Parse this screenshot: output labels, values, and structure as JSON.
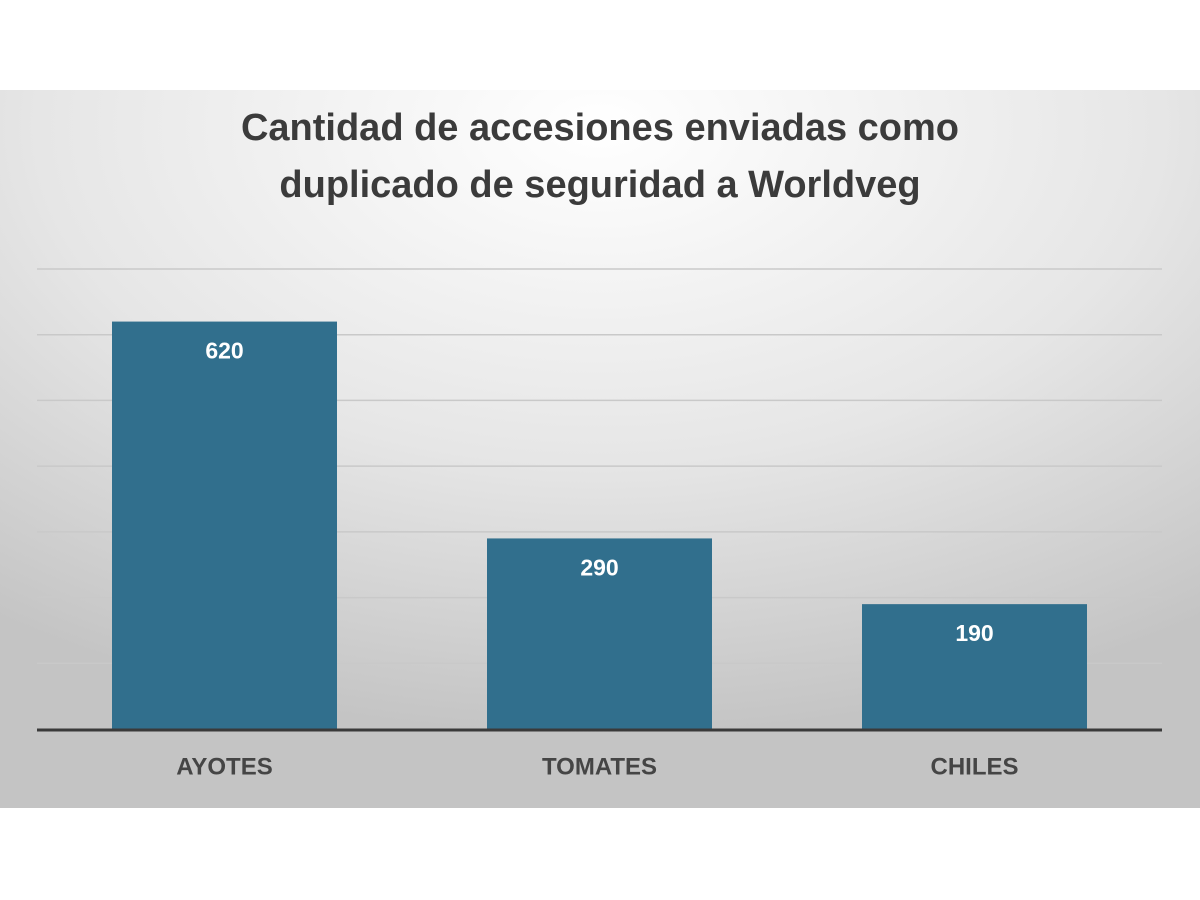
{
  "chart_data": {
    "type": "bar",
    "title": "Cantidad de accesiones enviadas como duplicado de seguridad a Worldveg",
    "categories": [
      "AYOTES",
      "TOMATES",
      "CHILES"
    ],
    "values": [
      620,
      290,
      190
    ],
    "color": "#316f8d",
    "ylim": [
      0,
      700
    ],
    "yticks": [
      0,
      100,
      200,
      300,
      400,
      500,
      600,
      700
    ],
    "grid": true
  }
}
